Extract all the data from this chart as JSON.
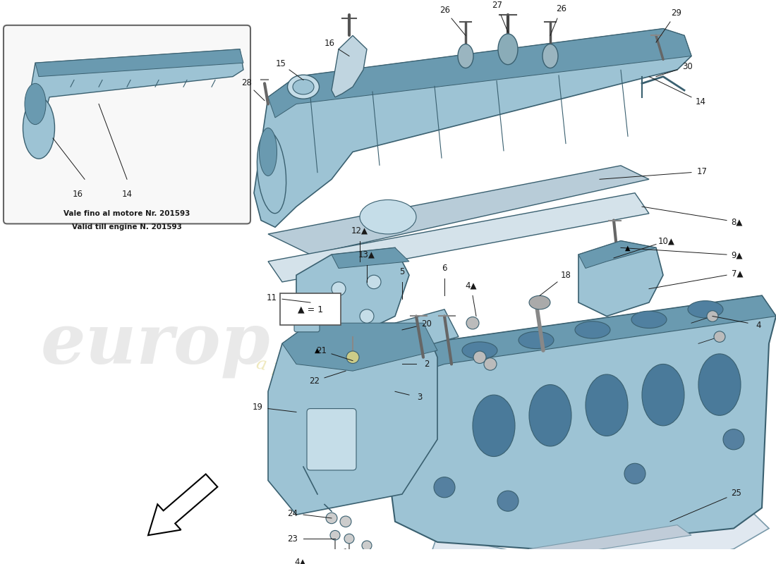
{
  "bg_color": "#ffffff",
  "inset_label1": "Vale fino al motore Nr. 201593",
  "inset_label2": "Valid till engine N. 201593",
  "legend_text": "▲ = 1",
  "parts_blue": "#9dc3d4",
  "parts_blue_dark": "#6a9ab0",
  "parts_blue_light": "#c5dde8",
  "parts_outline": "#3a6070",
  "line_color": "#1a1a1a",
  "gasket_color": "#e0e8ec",
  "wm1_color": "#d8d8d8",
  "wm2_color": "#e8dfa0",
  "label_fontsize": 8.5
}
